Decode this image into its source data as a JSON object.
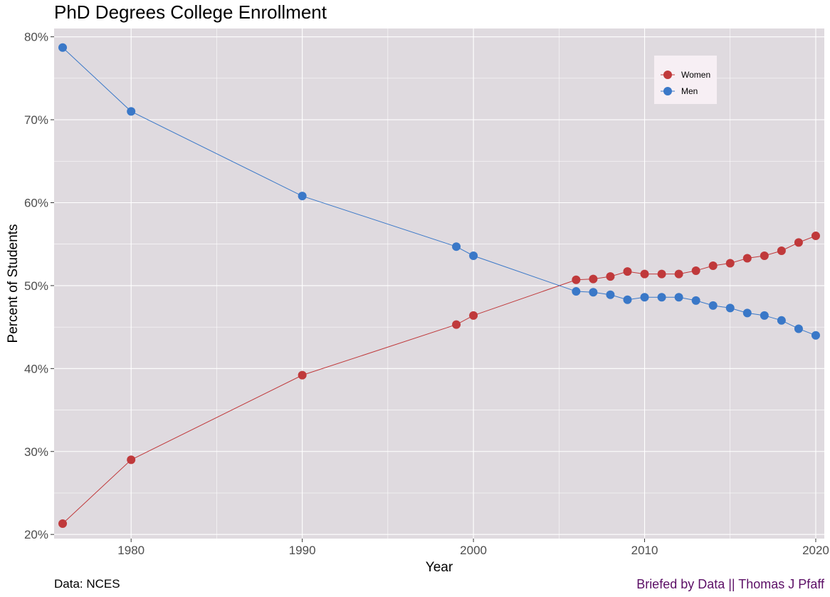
{
  "chart_data": {
    "type": "line",
    "title": "PhD Degrees College Enrollment",
    "xlabel": "Year",
    "ylabel": "Percent of Students",
    "xlim": [
      1975.5,
      2020.5
    ],
    "ylim": [
      19.5,
      81
    ],
    "x_ticks": [
      1980,
      1990,
      2000,
      2010,
      2020
    ],
    "y_ticks": [
      20,
      30,
      40,
      50,
      60,
      70,
      80
    ],
    "y_tick_labels": [
      "20%",
      "30%",
      "40%",
      "50%",
      "60%",
      "70%",
      "80%"
    ],
    "grid": true,
    "legend_position": "top-right",
    "x": [
      1976,
      1980,
      1990,
      1999,
      2000,
      2006,
      2007,
      2008,
      2009,
      2010,
      2011,
      2012,
      2013,
      2014,
      2015,
      2016,
      2017,
      2018,
      2019,
      2020
    ],
    "series": [
      {
        "name": "Women",
        "color": "#c0393b",
        "values": [
          21.3,
          29.0,
          39.2,
          45.3,
          46.4,
          50.7,
          50.8,
          51.1,
          51.7,
          51.4,
          51.4,
          51.4,
          51.8,
          52.4,
          52.7,
          53.3,
          53.6,
          54.2,
          55.2,
          56.0
        ]
      },
      {
        "name": "Men",
        "color": "#3a78c8",
        "values": [
          78.7,
          71.0,
          60.8,
          54.7,
          53.6,
          49.3,
          49.2,
          48.9,
          48.3,
          48.6,
          48.6,
          48.6,
          48.2,
          47.6,
          47.3,
          46.7,
          46.4,
          45.8,
          44.8,
          44.0
        ]
      }
    ]
  },
  "captions": {
    "source": "Data: NCES",
    "credit": "Briefed by Data || Thomas J Pfaff"
  },
  "colors": {
    "panel_background": "#dfdadf",
    "legend_background": "#f7eff4",
    "grid": "#ffffff",
    "credit_text": "#5c0f66"
  }
}
